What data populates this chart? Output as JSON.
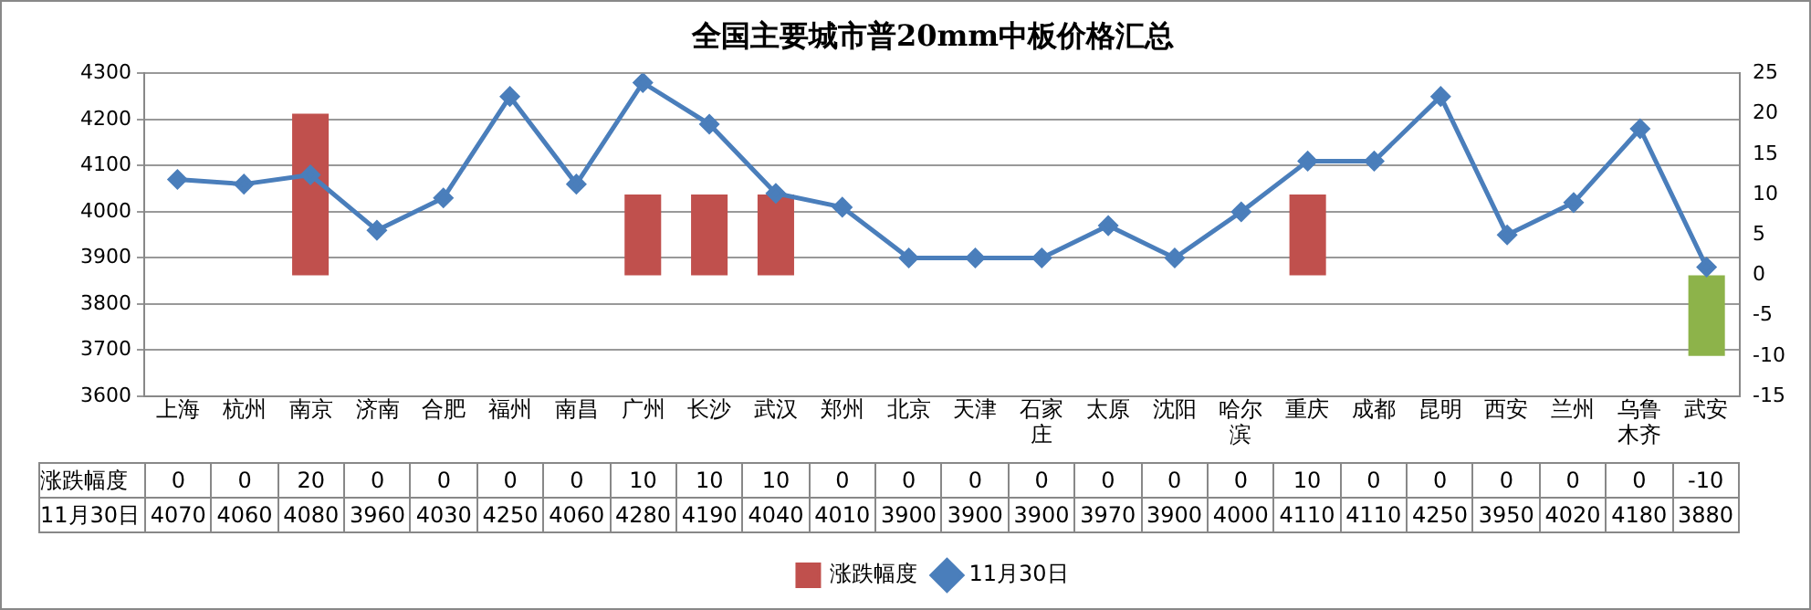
{
  "chart_data": {
    "type": "line",
    "title": "全国主要城市普20mm中板价格汇总",
    "categories": [
      "上海",
      "杭州",
      "南京",
      "济南",
      "合肥",
      "福州",
      "南昌",
      "广州",
      "长沙",
      "武汉",
      "郑州",
      "北京",
      "天津",
      "石家庄",
      "太原",
      "沈阳",
      "哈尔滨",
      "重庆",
      "成都",
      "昆明",
      "西安",
      "兰州",
      "乌鲁木齐",
      "武安"
    ],
    "series": [
      {
        "name": "涨跌幅度",
        "type": "bar",
        "axis": "y2",
        "color": "#c0504d",
        "colors": [
          "#c0504d",
          "#c0504d",
          "#c0504d",
          "#c0504d",
          "#c0504d",
          "#c0504d",
          "#c0504d",
          "#c0504d",
          "#c0504d",
          "#c0504d",
          "#c0504d",
          "#c0504d",
          "#c0504d",
          "#c0504d",
          "#c0504d",
          "#c0504d",
          "#c0504d",
          "#c0504d",
          "#c0504d",
          "#c0504d",
          "#c0504d",
          "#c0504d",
          "#c0504d",
          "#8db34a"
        ],
        "values": [
          0,
          0,
          20,
          0,
          0,
          0,
          0,
          10,
          10,
          10,
          0,
          0,
          0,
          0,
          0,
          0,
          0,
          10,
          0,
          0,
          0,
          0,
          0,
          -10
        ]
      },
      {
        "name": "11月30日",
        "color": "#4a7ebb",
        "values": [
          4070,
          4060,
          4080,
          3960,
          4030,
          4250,
          4060,
          4280,
          4190,
          4040,
          4010,
          3900,
          3900,
          3900,
          3970,
          3900,
          4000,
          4110,
          4110,
          4250,
          3950,
          4020,
          4180,
          3880
        ]
      }
    ],
    "ylim": [
      3600,
      4300
    ],
    "yticks": [
      3600,
      3700,
      3800,
      3900,
      4000,
      4100,
      4200,
      4300
    ],
    "y2lim": [
      -15,
      25
    ],
    "y2ticks": [
      -15,
      -10,
      -5,
      0,
      5,
      10,
      15,
      20,
      25
    ],
    "grid": "y",
    "legend": "bottom",
    "marker": "diamond",
    "line_style": "solid",
    "data_labels": true
  }
}
